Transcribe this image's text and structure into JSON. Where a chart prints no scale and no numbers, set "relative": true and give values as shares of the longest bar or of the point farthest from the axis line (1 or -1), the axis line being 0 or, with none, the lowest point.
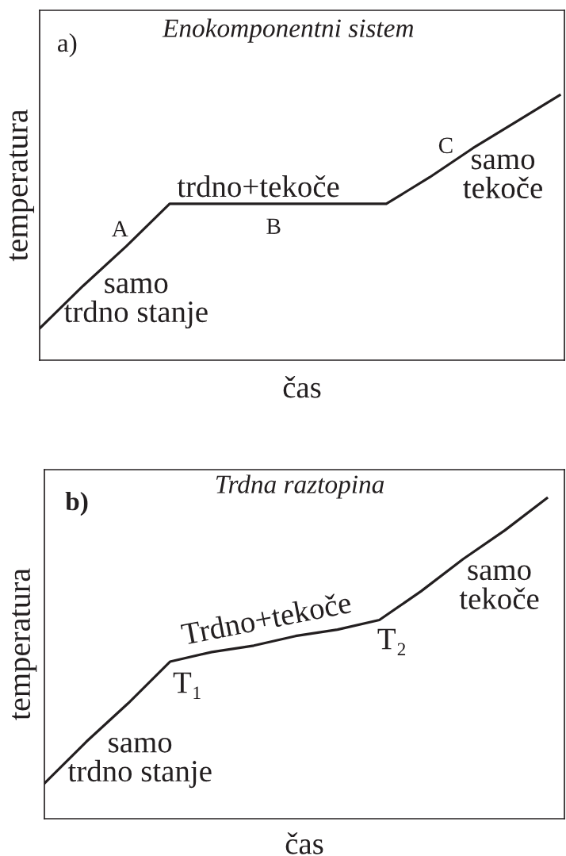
{
  "chart_data": [
    {
      "type": "line",
      "title": "Enokomponentni sistem",
      "xlabel": "čas",
      "ylabel": "temperatura",
      "relative": true,
      "categories": [
        null,
        null,
        null,
        null,
        null,
        null,
        null,
        null,
        null,
        null,
        null,
        null,
        null
      ],
      "series": [
        {
          "color": "#231f20",
          "values": [
            0.12,
            0.28,
            0.43,
            0.59,
            0.59,
            0.59,
            0.59,
            0.59,
            0.59,
            0.69,
            0.8,
            0.9,
            1.0
          ]
        }
      ],
      "annotations": [
        "a)",
        "A",
        "samo\ntrdno stanje",
        "trdno+tekoče",
        "B",
        "C",
        "samo\ntekoče"
      ]
    },
    {
      "type": "line",
      "title": "Trdna raztopina",
      "xlabel": "čas",
      "ylabel": "temperatura",
      "relative": true,
      "categories": [
        null,
        null,
        null,
        null,
        null,
        null,
        null,
        null,
        null,
        null,
        null,
        null,
        null
      ],
      "series": [
        {
          "color": "#231f20",
          "values": [
            0.11,
            0.24,
            0.36,
            0.49,
            0.52,
            0.54,
            0.57,
            0.59,
            0.62,
            0.71,
            0.81,
            0.9,
            1.0
          ]
        }
      ],
      "annotations": [
        "b)",
        "samo\ntrdno stanje",
        "T₁",
        "Trdno+tekoče",
        "T₂",
        "samo\ntekoče"
      ]
    }
  ]
}
